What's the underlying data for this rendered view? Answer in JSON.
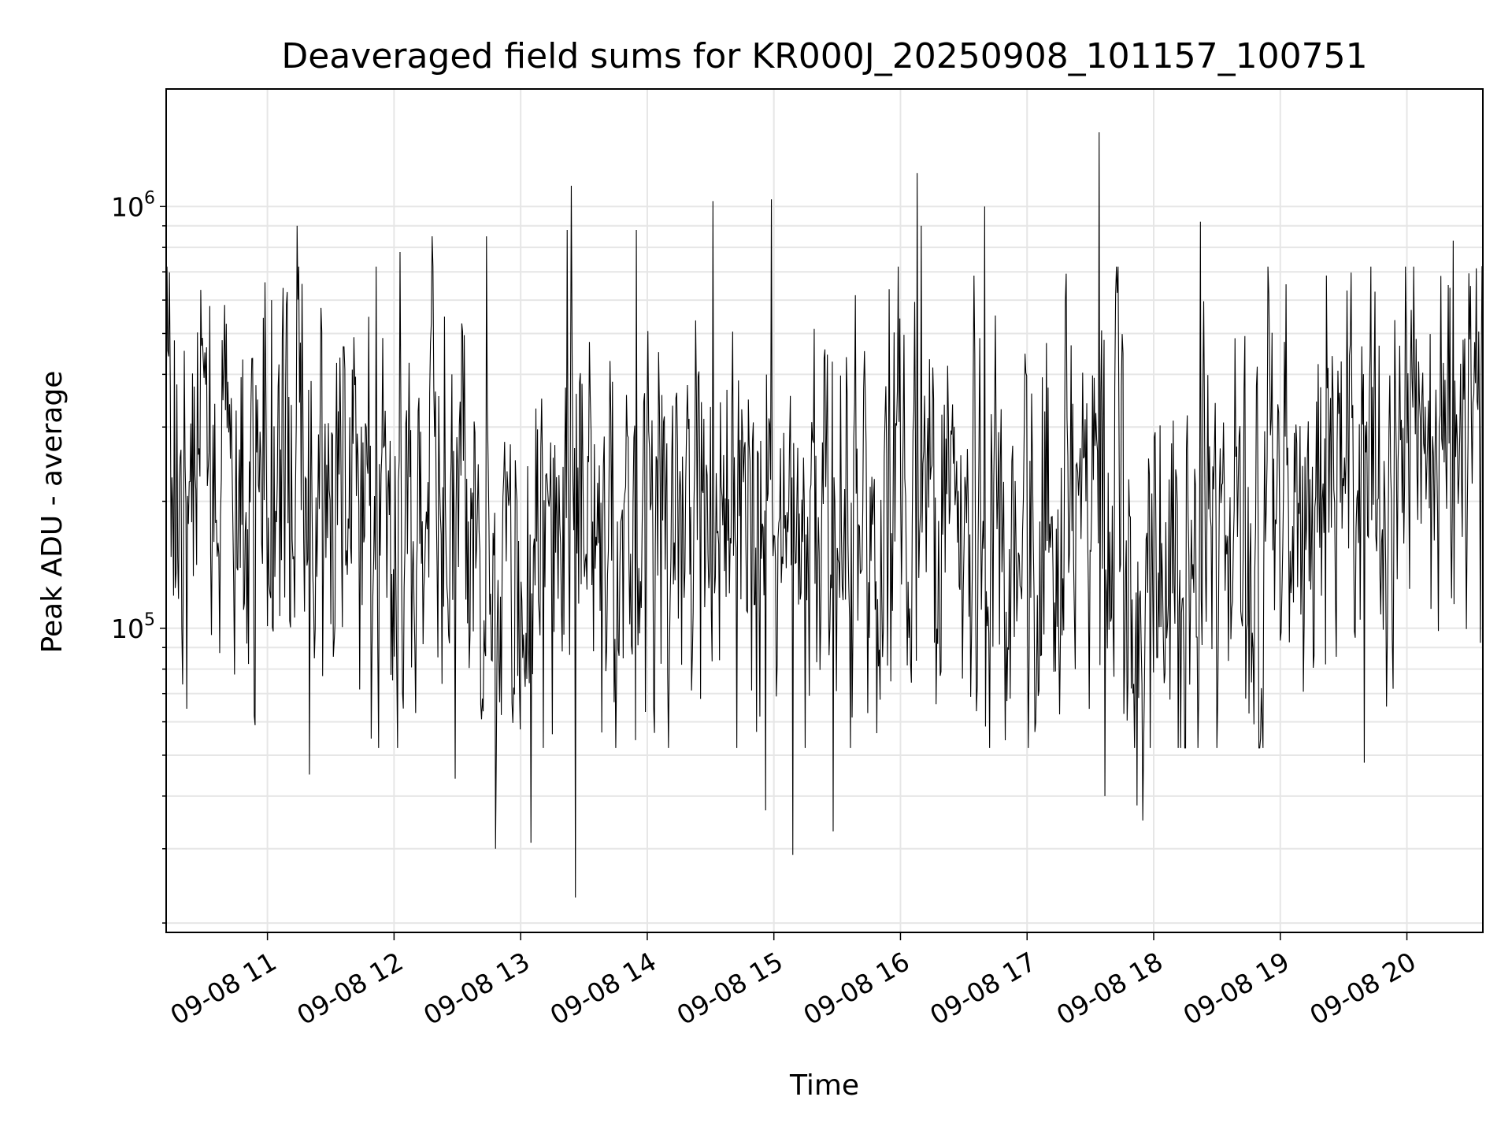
{
  "chart_data": {
    "type": "line",
    "title": "Deaveraged field sums for KR000J_20250908_101157_100751",
    "xlabel": "Time",
    "ylabel": "Peak ADU - average",
    "yscale": "log",
    "ylim": [
      19000,
      1900000
    ],
    "xlim": [
      "2025-09-08T10:12",
      "2025-09-08T20:36"
    ],
    "grid": true,
    "line_color": "#000000",
    "grid_color": "#e6e6e6",
    "x_ticks": [
      "2025-09-08T11:00",
      "2025-09-08T12:00",
      "2025-09-08T13:00",
      "2025-09-08T14:00",
      "2025-09-08T15:00",
      "2025-09-08T16:00",
      "2025-09-08T17:00",
      "2025-09-08T18:00",
      "2025-09-08T19:00",
      "2025-09-08T20:00"
    ],
    "x_tick_labels": [
      "09-08 11",
      "09-08 12",
      "09-08 13",
      "09-08 14",
      "09-08 15",
      "09-08 16",
      "09-08 17",
      "09-08 18",
      "09-08 19",
      "09-08 20"
    ],
    "y_major_ticks": [
      100000,
      1000000
    ],
    "y_tick_labels": [
      {
        "base": "10",
        "exp": "5"
      },
      {
        "base": "10",
        "exp": "6"
      }
    ],
    "baseline_profile": {
      "x": [
        "2025-09-08T10:12",
        "2025-09-08T11:00",
        "2025-09-08T11:30",
        "2025-09-08T12:00",
        "2025-09-08T13:00",
        "2025-09-08T14:00",
        "2025-09-08T15:00",
        "2025-09-08T16:00",
        "2025-09-08T17:00",
        "2025-09-08T17:30",
        "2025-09-08T18:00",
        "2025-09-08T19:00",
        "2025-09-08T19:30",
        "2025-09-08T20:00",
        "2025-09-08T20:36"
      ],
      "y": [
        260000,
        240000,
        180000,
        170000,
        160000,
        170000,
        175000,
        190000,
        165000,
        200000,
        140000,
        170000,
        230000,
        280000,
        420000
      ]
    },
    "spikes": [
      {
        "x": "2025-09-08T11:02",
        "y": 600000
      },
      {
        "x": "2025-09-08T11:14",
        "y": 900000
      },
      {
        "x": "2025-09-08T11:20",
        "y": 45000
      },
      {
        "x": "2025-09-08T12:03",
        "y": 780000
      },
      {
        "x": "2025-09-08T12:18",
        "y": 850000
      },
      {
        "x": "2025-09-08T12:29",
        "y": 44000
      },
      {
        "x": "2025-09-08T12:44",
        "y": 850000
      },
      {
        "x": "2025-09-08T12:48",
        "y": 30000
      },
      {
        "x": "2025-09-08T13:05",
        "y": 31000
      },
      {
        "x": "2025-09-08T13:22",
        "y": 880000
      },
      {
        "x": "2025-09-08T13:24",
        "y": 1120000
      },
      {
        "x": "2025-09-08T13:26",
        "y": 23000
      },
      {
        "x": "2025-09-08T13:55",
        "y": 880000
      },
      {
        "x": "2025-09-08T14:31",
        "y": 1030000
      },
      {
        "x": "2025-09-08T14:56",
        "y": 37000
      },
      {
        "x": "2025-09-08T14:59",
        "y": 1040000
      },
      {
        "x": "2025-09-08T15:09",
        "y": 29000
      },
      {
        "x": "2025-09-08T15:28",
        "y": 33000
      },
      {
        "x": "2025-09-08T16:08",
        "y": 1200000
      },
      {
        "x": "2025-09-08T16:10",
        "y": 900000
      },
      {
        "x": "2025-09-08T16:40",
        "y": 1000000
      },
      {
        "x": "2025-09-08T17:34",
        "y": 1500000
      },
      {
        "x": "2025-09-08T17:37",
        "y": 40000
      },
      {
        "x": "2025-09-08T17:52",
        "y": 38000
      },
      {
        "x": "2025-09-08T17:55",
        "y": 35000
      },
      {
        "x": "2025-09-08T18:22",
        "y": 920000
      },
      {
        "x": "2025-09-08T19:40",
        "y": 48000
      },
      {
        "x": "2025-09-08T20:22",
        "y": 830000
      }
    ],
    "data_note_points": 1600,
    "data_seed": 20250908
  }
}
